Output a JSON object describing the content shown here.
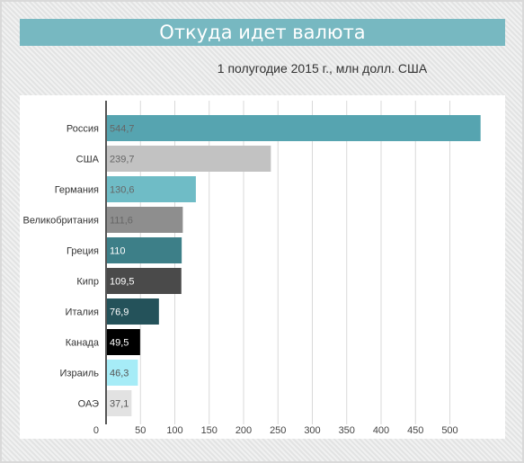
{
  "header": {
    "title": "Откуда идет валюта",
    "subtitle": "1 полугодие 2015 г., млн долл. США"
  },
  "chart_data": {
    "type": "bar",
    "orientation": "horizontal",
    "title": "Откуда идет валюта",
    "subtitle": "1 полугодие 2015 г., млн долл. США",
    "categories": [
      "Россия",
      "США",
      "Германия",
      "Великобритания",
      "Греция",
      "Кипр",
      "Италия",
      "Канада",
      "Израиль",
      "ОАЭ"
    ],
    "values": [
      544.7,
      239.7,
      130.6,
      111.6,
      110,
      109.5,
      76.9,
      49.5,
      46.3,
      37.1
    ],
    "value_labels": [
      "544,7",
      "239,7",
      "130,6",
      "111,6",
      "110",
      "109,5",
      "76,9",
      "49,5",
      "46,3",
      "37,1"
    ],
    "bar_colors": [
      "#56a4b0",
      "#c2c2c2",
      "#6fbcc6",
      "#8e8e8e",
      "#3d7f88",
      "#4a4a4a",
      "#24525a",
      "#000000",
      "#a6ecf7",
      "#e2e2e2"
    ],
    "label_colors": [
      "#666666",
      "#666666",
      "#666666",
      "#666666",
      "#ffffff",
      "#ffffff",
      "#ffffff",
      "#ffffff",
      "#555555",
      "#555555"
    ],
    "xticks": [
      "0",
      "50",
      "100",
      "150",
      "200",
      "250",
      "300",
      "350",
      "400",
      "450",
      "500"
    ],
    "xlim": [
      0,
      550
    ],
    "grid": true,
    "xlabel": "",
    "ylabel": ""
  },
  "colors": {
    "title_bar": "#77b8c1",
    "grid": "#d9d9d9",
    "axis": "#555555"
  }
}
